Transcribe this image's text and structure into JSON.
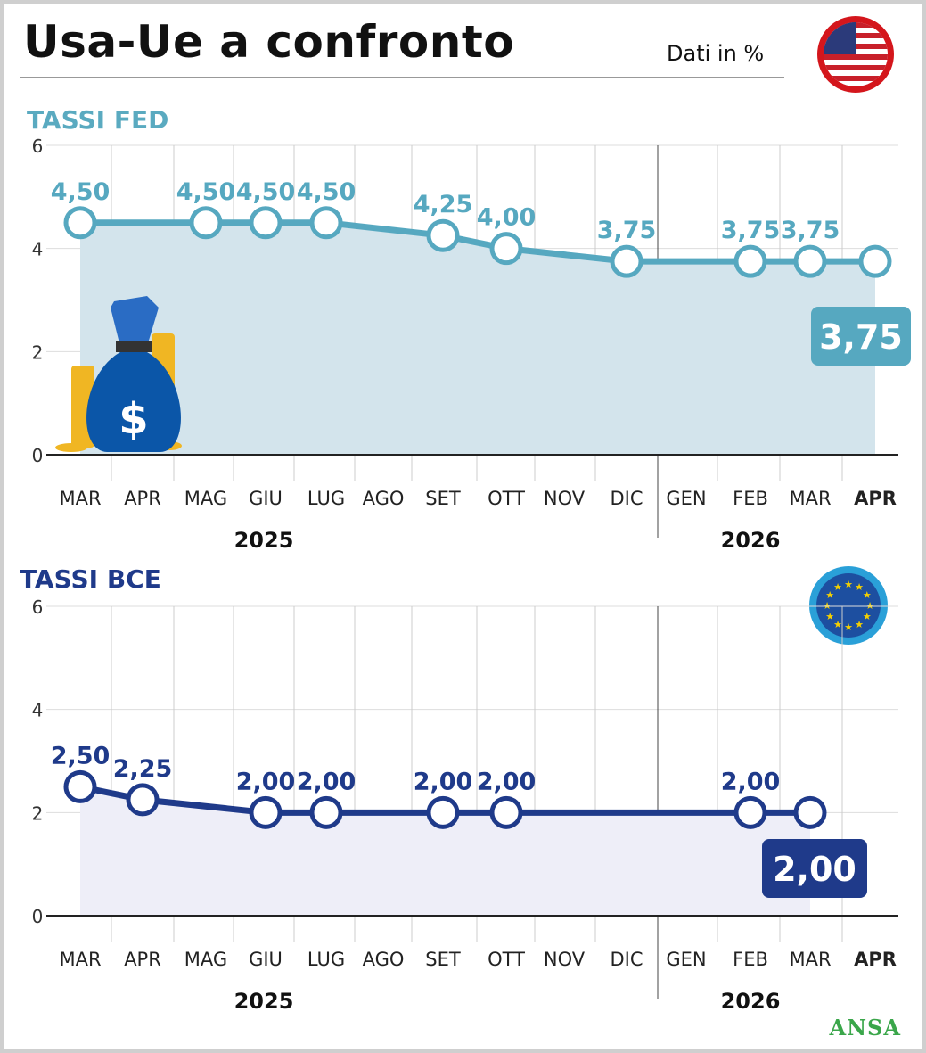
{
  "header": {
    "title": "Usa-Ue a confronto",
    "units": "Dati in %",
    "fed_title": "TASSI FED",
    "bce_title": "TASSI BCE",
    "source": "ANSA"
  },
  "colors": {
    "fed": "#56a8c0",
    "fed_fill": "#d3e4ec",
    "bce": "#1f3a8a",
    "bce_fill": "#eeeef8"
  },
  "chart_data": [
    {
      "type": "line",
      "title": "TASSI FED",
      "ylim": [
        0,
        6
      ],
      "yticks": [
        "0",
        "2",
        "4",
        "6"
      ],
      "categories": [
        "MAR",
        "APR",
        "MAG",
        "GIU",
        "LUG",
        "AGO",
        "SET",
        "OTT",
        "NOV",
        "DIC",
        "GEN",
        "FEB",
        "MAR",
        "APR"
      ],
      "years": [
        "2025",
        "2026"
      ],
      "values": [
        4.5,
        null,
        4.5,
        4.5,
        4.5,
        null,
        4.25,
        4.0,
        null,
        3.75,
        null,
        3.75,
        3.75,
        3.75
      ],
      "labels": [
        "4,50",
        null,
        "4,50",
        "4,50",
        "4,50",
        null,
        "4,25",
        "4,00",
        null,
        "3,75",
        null,
        "3,75",
        "3,75",
        null
      ],
      "current": "3,75"
    },
    {
      "type": "line",
      "title": "TASSI BCE",
      "ylim": [
        0,
        6
      ],
      "yticks": [
        "0",
        "2",
        "4",
        "6"
      ],
      "categories": [
        "MAR",
        "APR",
        "MAG",
        "GIU",
        "LUG",
        "AGO",
        "SET",
        "OTT",
        "NOV",
        "DIC",
        "GEN",
        "FEB",
        "MAR",
        "APR"
      ],
      "years": [
        "2025",
        "2026"
      ],
      "values": [
        2.5,
        2.25,
        null,
        2.0,
        2.0,
        null,
        2.0,
        2.0,
        null,
        null,
        null,
        2.0,
        2.0,
        null
      ],
      "labels": [
        "2,50",
        "2,25",
        null,
        "2,00",
        "2,00",
        null,
        "2,00",
        "2,00",
        null,
        null,
        null,
        "2,00",
        null,
        null
      ],
      "current": "2,00"
    }
  ]
}
